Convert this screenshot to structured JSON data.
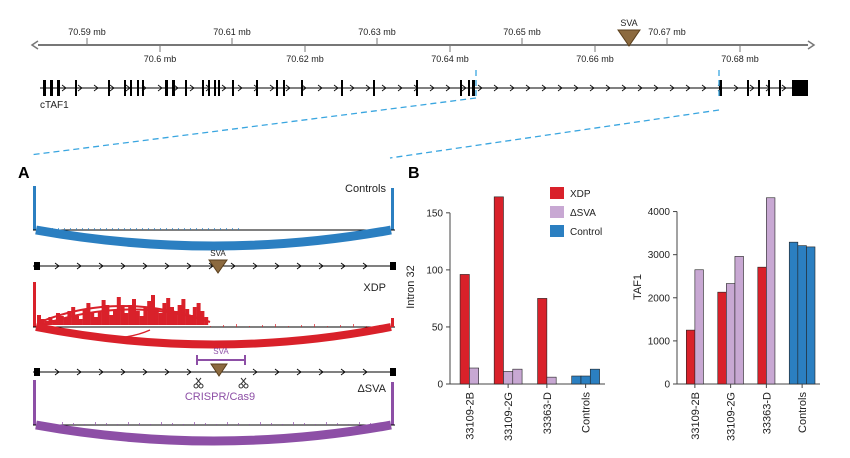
{
  "genome": {
    "ticks_top": [
      "70.59 mb",
      "70.61 mb",
      "70.63 mb",
      "70.65 mb",
      "70.67 mb"
    ],
    "ticks_bottom": [
      "70.6 mb",
      "70.62 mb",
      "70.64 mb",
      "70.66 mb",
      "70.68 mb"
    ],
    "sva_label": "SVA",
    "gene_label": "cTAF1"
  },
  "panel_a": {
    "letter": "A",
    "tracks": [
      {
        "label": "Controls",
        "color": "#2b7fc1"
      },
      {
        "label": "XDP",
        "color": "#d9212a"
      },
      {
        "label": "ΔSVA",
        "color": "#8d4fa6"
      }
    ],
    "sva_label": "SVA",
    "crispr_label": "CRISPR/Cas9"
  },
  "panel_b": {
    "letter": "B",
    "colors": {
      "XDP": "#d9212a",
      "dSVA": "#c8a8d3",
      "Control": "#2b7fc1"
    },
    "legend": [
      "XDP",
      "ΔSVA",
      "Control"
    ]
  },
  "chart_data": [
    {
      "type": "bar",
      "ylabel": "Intron 32",
      "ylim": [
        0,
        170
      ],
      "yticks": [
        0,
        50,
        100,
        150
      ],
      "categories": [
        "33109-2B",
        "33109-2G",
        "33363-D",
        "Controls"
      ],
      "groups": [
        {
          "category": "33109-2B",
          "bars": [
            {
              "series": "XDP",
              "value": 96
            },
            {
              "series": "ΔSVA",
              "value": 14
            }
          ]
        },
        {
          "category": "33109-2G",
          "bars": [
            {
              "series": "XDP",
              "value": 164
            },
            {
              "series": "ΔSVA",
              "value": 11
            },
            {
              "series": "ΔSVA",
              "value": 13
            }
          ]
        },
        {
          "category": "33363-D",
          "bars": [
            {
              "series": "XDP",
              "value": 75
            },
            {
              "series": "ΔSVA",
              "value": 6
            }
          ]
        },
        {
          "category": "Controls",
          "bars": [
            {
              "series": "Control",
              "value": 7
            },
            {
              "series": "Control",
              "value": 7
            },
            {
              "series": "Control",
              "value": 13
            }
          ]
        }
      ]
    },
    {
      "type": "bar",
      "ylabel": "TAF1",
      "ylim": [
        0,
        4500
      ],
      "yticks": [
        0,
        1000,
        2000,
        3000,
        4000
      ],
      "categories": [
        "33109-2B",
        "33109-2G",
        "33363-D",
        "Controls"
      ],
      "groups": [
        {
          "category": "33109-2B",
          "bars": [
            {
              "series": "XDP",
              "value": 1250
            },
            {
              "series": "ΔSVA",
              "value": 2650
            }
          ]
        },
        {
          "category": "33109-2G",
          "bars": [
            {
              "series": "XDP",
              "value": 2130
            },
            {
              "series": "ΔSVA",
              "value": 2330
            },
            {
              "series": "ΔSVA",
              "value": 2960
            }
          ]
        },
        {
          "category": "33363-D",
          "bars": [
            {
              "series": "XDP",
              "value": 2710
            },
            {
              "series": "ΔSVA",
              "value": 4320
            }
          ]
        },
        {
          "category": "Controls",
          "bars": [
            {
              "series": "Control",
              "value": 3290
            },
            {
              "series": "Control",
              "value": 3210
            },
            {
              "series": "Control",
              "value": 3180
            }
          ]
        }
      ]
    }
  ]
}
